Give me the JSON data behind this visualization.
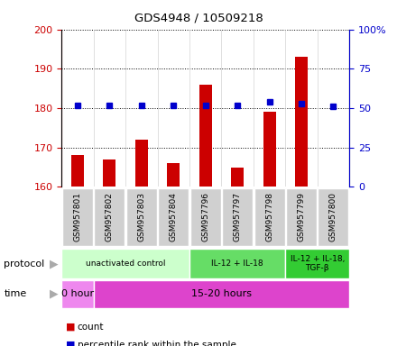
{
  "title": "GDS4948 / 10509218",
  "samples": [
    "GSM957801",
    "GSM957802",
    "GSM957803",
    "GSM957804",
    "GSM957796",
    "GSM957797",
    "GSM957798",
    "GSM957799",
    "GSM957800"
  ],
  "count_values": [
    168,
    167,
    172,
    166,
    186,
    165,
    179,
    193,
    160
  ],
  "percentile_values": [
    52,
    52,
    52,
    52,
    52,
    52,
    54,
    53,
    51
  ],
  "ylim_left": [
    160,
    200
  ],
  "ylim_right": [
    0,
    100
  ],
  "yticks_left": [
    160,
    170,
    180,
    190,
    200
  ],
  "yticks_right": [
    0,
    25,
    50,
    75,
    100
  ],
  "ytick_labels_right": [
    "0",
    "25",
    "50",
    "75",
    "100%"
  ],
  "count_color": "#cc0000",
  "percentile_color": "#0000cc",
  "bar_bottom": 160,
  "bar_width": 0.4,
  "protocol_groups": [
    {
      "label": "unactivated control",
      "start": 0,
      "end": 4,
      "color": "#ccffcc"
    },
    {
      "label": "IL-12 + IL-18",
      "start": 4,
      "end": 7,
      "color": "#66dd66"
    },
    {
      "label": "IL-12 + IL-18,\nTGF-β",
      "start": 7,
      "end": 9,
      "color": "#33cc33"
    }
  ],
  "time_groups": [
    {
      "label": "0 hour",
      "start": 0,
      "end": 1,
      "color": "#ee88ee"
    },
    {
      "label": "15-20 hours",
      "start": 1,
      "end": 9,
      "color": "#dd44cc"
    }
  ],
  "protocol_label": "protocol",
  "time_label": "time",
  "legend_count": "count",
  "legend_percentile": "percentile rank within the sample",
  "background_color": "#ffffff",
  "sample_box_color": "#d0d0d0",
  "left_axis_color": "#cc0000",
  "right_axis_color": "#0000cc",
  "grid_linestyle": "dotted",
  "grid_color": "#000000"
}
